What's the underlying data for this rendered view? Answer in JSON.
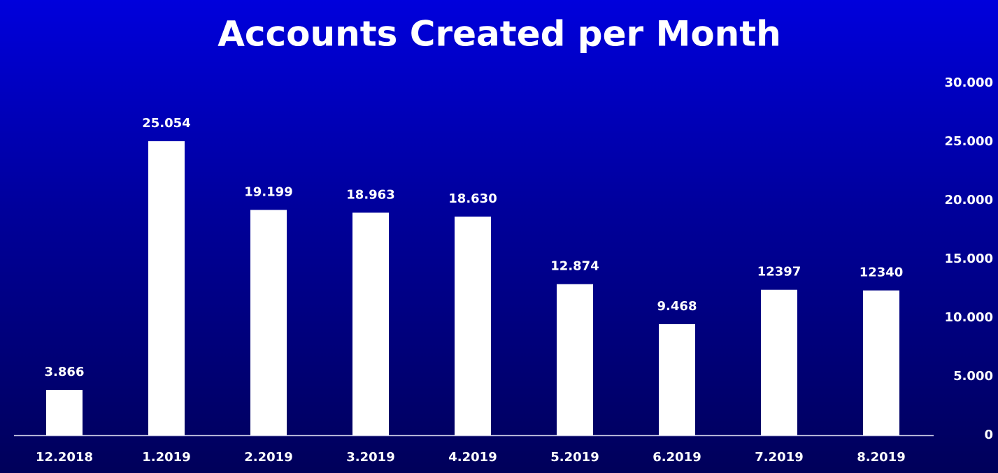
{
  "chart_data": {
    "type": "bar",
    "title": "Accounts Created per Month",
    "categories": [
      "12.2018",
      "1.2019",
      "2.2019",
      "3.2019",
      "4.2019",
      "5.2019",
      "6.2019",
      "7.2019",
      "8.2019"
    ],
    "values": [
      3866,
      25054,
      19199,
      18963,
      18630,
      12874,
      9468,
      12397,
      12340
    ],
    "value_labels": [
      "3.866",
      "25.054",
      "19.199",
      "18.963",
      "18.630",
      "12.874",
      "9.468",
      "12397",
      "12340"
    ],
    "color": "#ffffff",
    "ylim": [
      0,
      30000
    ],
    "yticks": [
      0,
      {
        "value": 5000,
        "label": "5.000"
      },
      {
        "value": 10000,
        "label": "10.000"
      },
      {
        "value": 15000,
        "label": "15.000"
      },
      {
        "value": 20000,
        "label": "20.000"
      },
      {
        "value": 25000,
        "label": "25.000"
      },
      {
        "value": 30000,
        "label": "30.000"
      }
    ],
    "grid": false
  }
}
